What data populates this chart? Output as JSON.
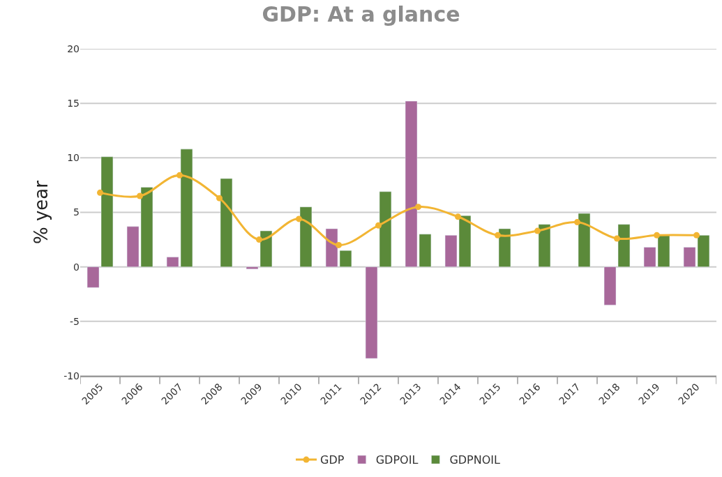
{
  "chart_data": {
    "type": "bar",
    "title": "GDP: At a glance",
    "ylabel": "% year",
    "categories": [
      "2005",
      "2006",
      "2007",
      "2008",
      "2009",
      "2010",
      "2011",
      "2012",
      "2013",
      "2014",
      "2015",
      "2016",
      "2017",
      "2018",
      "2019",
      "2020"
    ],
    "series": [
      {
        "name": "GDP",
        "type": "line",
        "color": "#f2b533",
        "marker": "circle",
        "values": [
          6.8,
          6.5,
          8.4,
          6.3,
          2.5,
          4.4,
          2.0,
          3.8,
          5.5,
          4.6,
          2.9,
          3.3,
          4.1,
          2.6,
          2.9,
          2.9
        ]
      },
      {
        "name": "GDPOIL",
        "color": "#a8689a",
        "values": [
          -1.9,
          3.7,
          0.9,
          null,
          -0.2,
          null,
          3.5,
          -8.4,
          15.2,
          2.9,
          null,
          null,
          null,
          -3.5,
          1.8,
          1.8
        ]
      },
      {
        "name": "GDPNOIL",
        "color": "#5b8a3a",
        "values": [
          10.1,
          7.3,
          10.8,
          8.1,
          3.3,
          5.5,
          1.5,
          6.9,
          3.0,
          4.7,
          3.5,
          3.9,
          4.9,
          3.9,
          2.9,
          2.9
        ]
      }
    ],
    "ylim": [
      -10,
      20
    ],
    "yticks": [
      -10,
      -5,
      0,
      5,
      10,
      15,
      20
    ],
    "grid": "y",
    "legend": "bottom"
  }
}
